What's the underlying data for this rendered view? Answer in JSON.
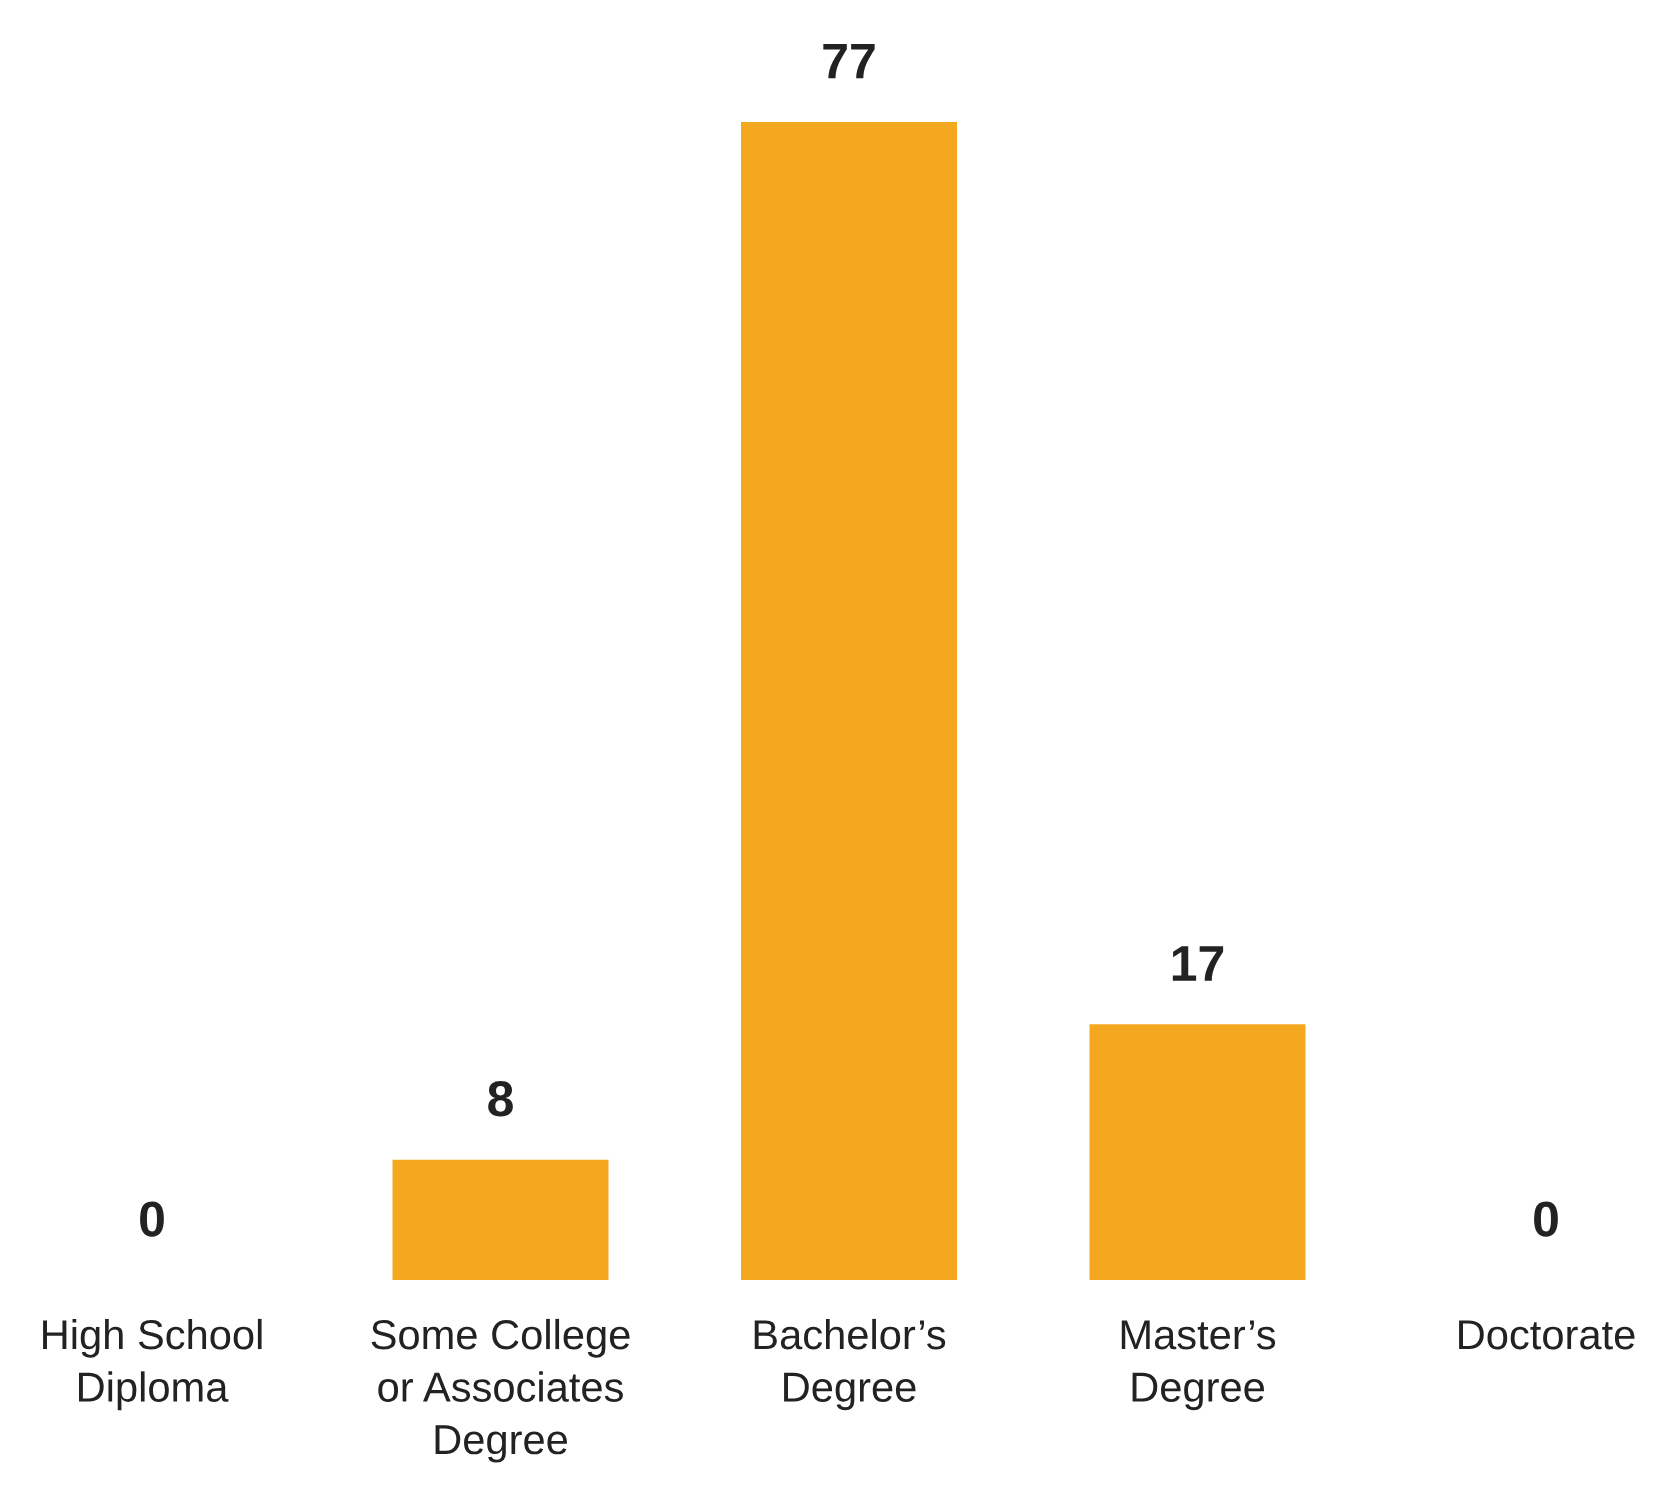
{
  "chart_data": {
    "type": "bar",
    "categories": [
      "High School\nDiploma",
      "Some College\nor Associates\nDegree",
      "Bachelor’s\nDegree",
      "Master’s\nDegree",
      "Doctorate"
    ],
    "values": [
      0,
      8,
      77,
      17,
      0
    ],
    "color": "#f4a81f",
    "data_labels": true,
    "grid": false,
    "legend": false
  }
}
